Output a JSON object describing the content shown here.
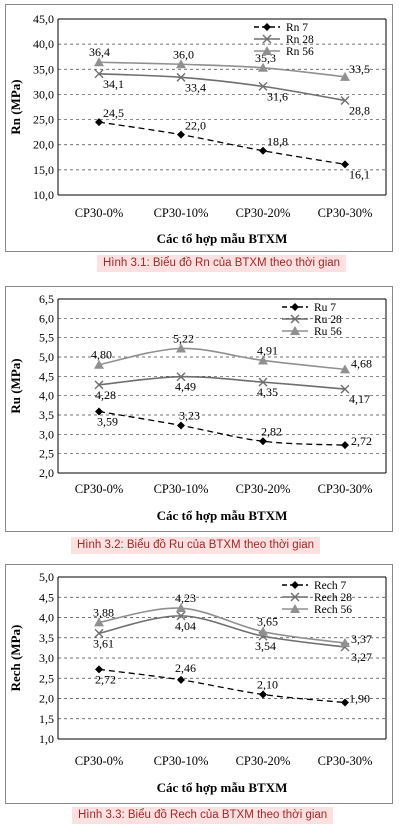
{
  "chart_data": [
    {
      "type": "line",
      "categories": [
        "CP30-0%",
        "CP30-10%",
        "CP30-20%",
        "CP30-30%"
      ],
      "ylabel": "Rn (MPa)",
      "xlabel": "Các tổ hợp mẫu BTXM",
      "ylim": [
        10.0,
        45.0
      ],
      "ytick_step": 5,
      "yticks": [
        "10,0",
        "15,0",
        "20,0",
        "25,0",
        "30,0",
        "35,0",
        "40,0",
        "45,0"
      ],
      "grid": "horizontal-dashed",
      "legend": "top-right",
      "series": [
        {
          "name": "Rn 7",
          "values": [
            24.5,
            22.0,
            18.8,
            16.1
          ],
          "labels": [
            "24,5",
            "22,0",
            "18,8",
            "16,1"
          ],
          "color": "#000000",
          "marker": "diamond",
          "dash": true
        },
        {
          "name": "Rn 28",
          "values": [
            34.1,
            33.4,
            31.6,
            28.8
          ],
          "labels": [
            "34,1",
            "33,4",
            "31,6",
            "28,8"
          ],
          "color": "#6e6e6e",
          "marker": "x",
          "dash": false
        },
        {
          "name": "Rn 56",
          "values": [
            36.4,
            36.0,
            35.3,
            33.5
          ],
          "labels": [
            "36,4",
            "36,0",
            "35,3",
            "33,5"
          ],
          "color": "#909090",
          "marker": "triangle",
          "dash": false
        }
      ]
    },
    {
      "type": "line",
      "categories": [
        "CP30-0%",
        "CP30-10%",
        "CP30-20%",
        "CP30-30%"
      ],
      "ylabel": "Ru (MPa)",
      "xlabel": "Các tổ hợp mẫu BTXM",
      "ylim": [
        2.0,
        6.5
      ],
      "ytick_step": 0.5,
      "yticks": [
        "2,0",
        "2,5",
        "3,0",
        "3,5",
        "4,0",
        "4,5",
        "5,0",
        "5,5",
        "6,0",
        "6,5"
      ],
      "grid": "horizontal-dashed",
      "legend": "top-right",
      "series": [
        {
          "name": "Ru 7",
          "values": [
            3.59,
            3.23,
            2.82,
            2.72
          ],
          "labels": [
            "3,59",
            "3,23",
            "2,82",
            "2,72"
          ],
          "color": "#000000",
          "marker": "diamond",
          "dash": true
        },
        {
          "name": "Ru 28",
          "values": [
            4.28,
            4.49,
            4.35,
            4.17
          ],
          "labels": [
            "4,28",
            "4,49",
            "4,35",
            "4,17"
          ],
          "color": "#6e6e6e",
          "marker": "x",
          "dash": false
        },
        {
          "name": "Ru 56",
          "values": [
            4.8,
            5.22,
            4.91,
            4.68
          ],
          "labels": [
            "4,80",
            "5,22",
            "4,91",
            "4,68"
          ],
          "color": "#909090",
          "marker": "triangle",
          "dash": false
        }
      ]
    },
    {
      "type": "line",
      "categories": [
        "CP30-0%",
        "CP30-10%",
        "CP30-20%",
        "CP30-30%"
      ],
      "ylabel": "Rech (MPa)",
      "xlabel": "Các tổ hợp mẫu BTXM",
      "ylim": [
        1.0,
        5.0
      ],
      "ytick_step": 0.5,
      "yticks": [
        "1,0",
        "1,5",
        "2,0",
        "2,5",
        "3,0",
        "3,5",
        "4,0",
        "4,5",
        "5,0"
      ],
      "grid": "horizontal-dashed",
      "legend": "top-right",
      "series": [
        {
          "name": "Rech 7",
          "values": [
            2.72,
            2.46,
            2.1,
            1.9
          ],
          "labels": [
            "2,72",
            "2,46",
            "2,10",
            "1,90"
          ],
          "color": "#000000",
          "marker": "diamond",
          "dash": true
        },
        {
          "name": "Rech 28",
          "values": [
            3.61,
            4.04,
            3.54,
            3.27
          ],
          "labels": [
            "3,61",
            "4,04",
            "3,54",
            "3,27"
          ],
          "color": "#6e6e6e",
          "marker": "x",
          "dash": false
        },
        {
          "name": "Rech 56",
          "values": [
            3.88,
            4.23,
            3.65,
            3.37
          ],
          "labels": [
            "3,88",
            "4,23",
            "3,65",
            "3,37"
          ],
          "color": "#909090",
          "marker": "triangle",
          "dash": false
        }
      ]
    }
  ],
  "captions": [
    "Hình 3.1: Biểu đồ Rn của BTXM theo thời gian",
    "Hình 3.2: Biểu đồ Ru của BTXM theo thời gian",
    "Hình 3.3: Biểu đồ Rech của BTXM theo thời gian"
  ]
}
